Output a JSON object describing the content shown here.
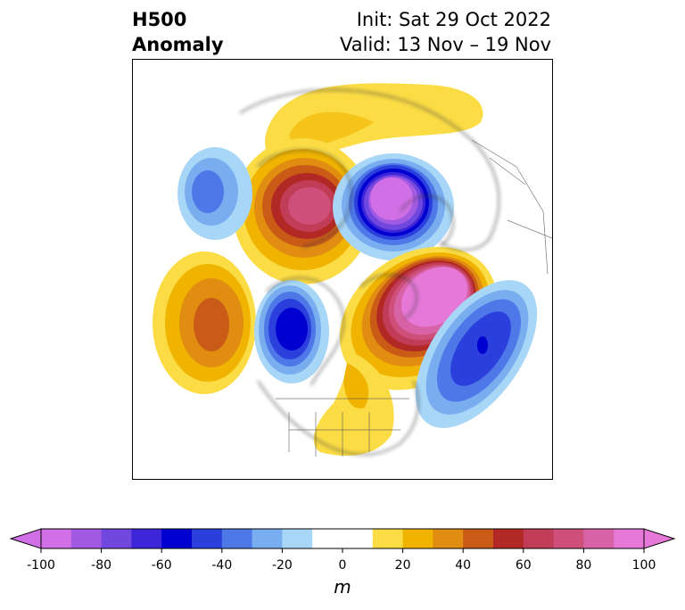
{
  "title": {
    "left_line1": "H500",
    "left_line2": "Anomaly",
    "right_line1": "Init: Sat 29 Oct 2022",
    "right_line2": "Valid: 13 Nov – 19 Nov"
  },
  "colorbar": {
    "unit": "m",
    "ticks": [
      "-100",
      "-80",
      "-60",
      "-40",
      "-20",
      "0",
      "20",
      "40",
      "60",
      "80",
      "100"
    ],
    "min": -100,
    "max": 100,
    "extend": "both",
    "colors": [
      "#d16fe6",
      "#a35ae3",
      "#7048df",
      "#3d25d8",
      "#0000d0",
      "#2b3fdd",
      "#4e77e8",
      "#78adf0",
      "#a8d6f7",
      "#ffffff",
      "#ffffff",
      "#fbdc45",
      "#f0b400",
      "#e08d12",
      "#c95b17",
      "#b22825",
      "#c13c56",
      "#cd4f7a",
      "#d762a6",
      "#e678d8"
    ],
    "under_color": "#d16fe6",
    "over_color": "#e678d8"
  }
}
